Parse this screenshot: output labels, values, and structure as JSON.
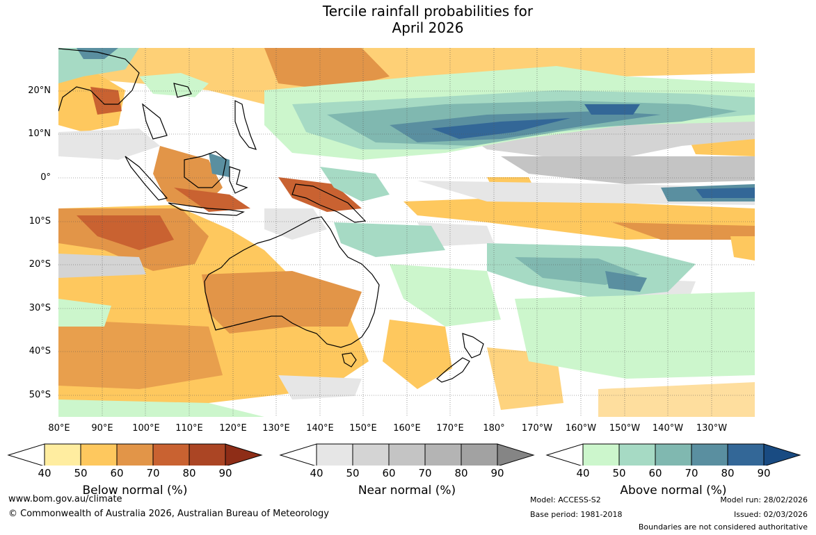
{
  "title": {
    "line1": "Tercile rainfall probabilities for",
    "line2": "April 2026"
  },
  "map": {
    "lat_labels": [
      "20°N",
      "10°N",
      "0°",
      "10°S",
      "20°S",
      "30°S",
      "40°S",
      "50°S"
    ],
    "lon_labels": [
      "80°E",
      "90°E",
      "100°E",
      "110°E",
      "120°E",
      "130°E",
      "140°E",
      "150°E",
      "160°E",
      "170°E",
      "180°",
      "170°W",
      "160°W",
      "150°W",
      "140°W",
      "130°W"
    ]
  },
  "colorbars": [
    {
      "title": "Below normal (%)",
      "ticks": [
        "40",
        "50",
        "60",
        "70",
        "80",
        "90"
      ],
      "colors": [
        "#ffeda0",
        "#fec85e",
        "#e29548",
        "#c96231",
        "#ab4524",
        "#8e2d17"
      ]
    },
    {
      "title": "Near normal (%)",
      "ticks": [
        "40",
        "50",
        "60",
        "70",
        "80",
        "90"
      ],
      "colors": [
        "#e6e6e6",
        "#d4d4d4",
        "#c4c4c4",
        "#b4b4b4",
        "#a2a2a2",
        "#858585"
      ]
    },
    {
      "title": "Above normal (%)",
      "ticks": [
        "40",
        "50",
        "60",
        "70",
        "80",
        "90"
      ],
      "colors": [
        "#ccf6cc",
        "#a6dac4",
        "#80b8b0",
        "#5a8fa0",
        "#336797",
        "#194b82"
      ]
    }
  ],
  "footer": {
    "url": "www.bom.gov.au/climate",
    "copyright": "© Commonwealth of Australia 2026, Australian Bureau of Meteorology",
    "model": "Model: ACCESS-S2",
    "base_period": "Base period: 1981-2018",
    "model_run": "Model run: 28/02/2026",
    "issued": "Issued: 02/03/2026",
    "disclaimer": "Boundaries are not considered authoritative"
  }
}
